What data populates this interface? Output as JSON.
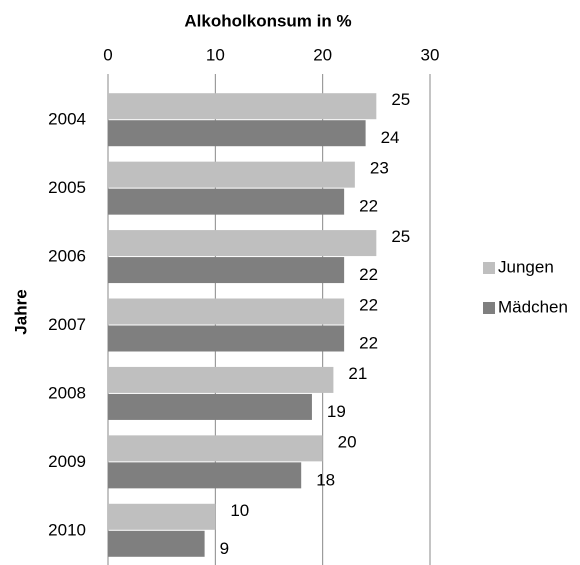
{
  "chart_data": {
    "type": "hbar",
    "title": "Alkoholkonsum in %",
    "y_label": "Jahre",
    "categories": [
      "2004",
      "2005",
      "2006",
      "2007",
      "2008",
      "2009",
      "2010"
    ],
    "series": [
      {
        "name": "Jungen",
        "color": "#bfbfbf",
        "values": [
          25,
          23,
          25,
          22,
          21,
          20,
          10
        ]
      },
      {
        "name": "Mädchen",
        "color": "#7f7f7f",
        "values": [
          24,
          22,
          22,
          22,
          19,
          18,
          9
        ]
      }
    ],
    "xlim": [
      0,
      30
    ],
    "xticks": [
      0,
      10,
      20,
      30
    ],
    "grid": true,
    "legend": "right"
  }
}
